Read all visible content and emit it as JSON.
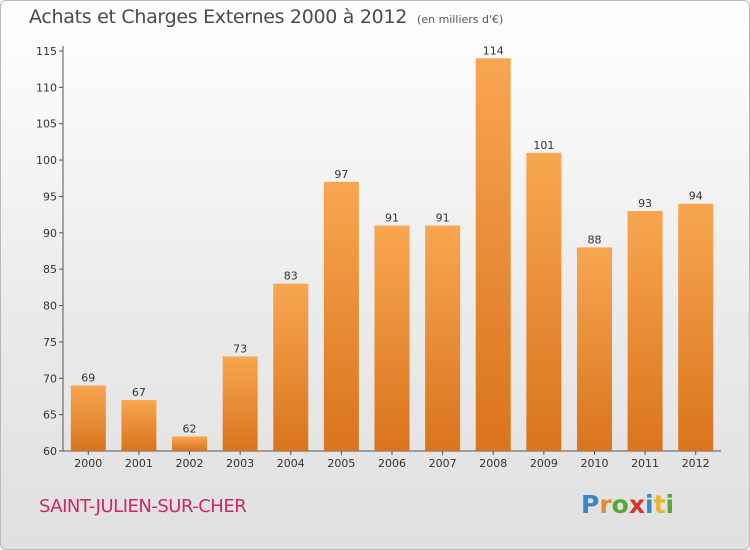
{
  "title": "Achats et Charges Externes 2000 à 2012",
  "subtitle": "(en milliers d'€)",
  "commune": "SAINT-JULIEN-SUR-CHER",
  "logo": {
    "letters": [
      "P",
      "r",
      "o",
      "x",
      "i",
      "t",
      "i"
    ],
    "colors": [
      "#3a86c8",
      "#e8892c",
      "#58a838",
      "#d8332c",
      "#3a86c8",
      "#e8b82c",
      "#58a838"
    ]
  },
  "colors": {
    "bar_light": "#f8a650",
    "bar_dark": "#d9741d",
    "axis": "#555555",
    "grid": "#cccccc"
  },
  "chart_data": {
    "type": "bar",
    "title": "Achats et Charges Externes 2000 à 2012",
    "subtitle": "(en milliers d'€)",
    "categories": [
      "2000",
      "2001",
      "2002",
      "2003",
      "2004",
      "2005",
      "2006",
      "2007",
      "2008",
      "2009",
      "2010",
      "2011",
      "2012"
    ],
    "values": [
      69,
      67,
      62,
      73,
      83,
      97,
      91,
      91,
      114,
      101,
      88,
      93,
      94
    ],
    "ylim": [
      60,
      115
    ],
    "yticks": [
      60,
      65,
      70,
      75,
      80,
      85,
      90,
      95,
      100,
      105,
      110,
      115
    ],
    "xlabel": "",
    "ylabel": "",
    "grid": false,
    "legend": "none"
  }
}
